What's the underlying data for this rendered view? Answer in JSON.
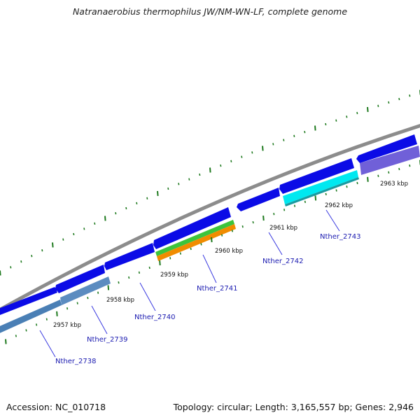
{
  "title": "Natranaerobius thermophilus JW/NM-WN-LF, complete genome",
  "footer": {
    "accession": "Accession: NC_010718",
    "topology": "Topology: circular; Length: 3,165,557 bp; Genes: 2,946"
  },
  "colors": {
    "backbone": "#8c8c8c",
    "cds": "#0b0be6",
    "tick": "#1f7a1f",
    "gene_label": "#1a1ab0"
  },
  "kbp_labels": [
    "2957 kbp",
    "2958 kbp",
    "2959 kbp",
    "2960 kbp",
    "2961 kbp",
    "2962 kbp",
    "2963 kbp"
  ],
  "gene_labels": [
    "Nther_2738",
    "Nther_2739",
    "Nther_2740",
    "Nther_2741",
    "Nther_2742",
    "Nther_2743"
  ]
}
